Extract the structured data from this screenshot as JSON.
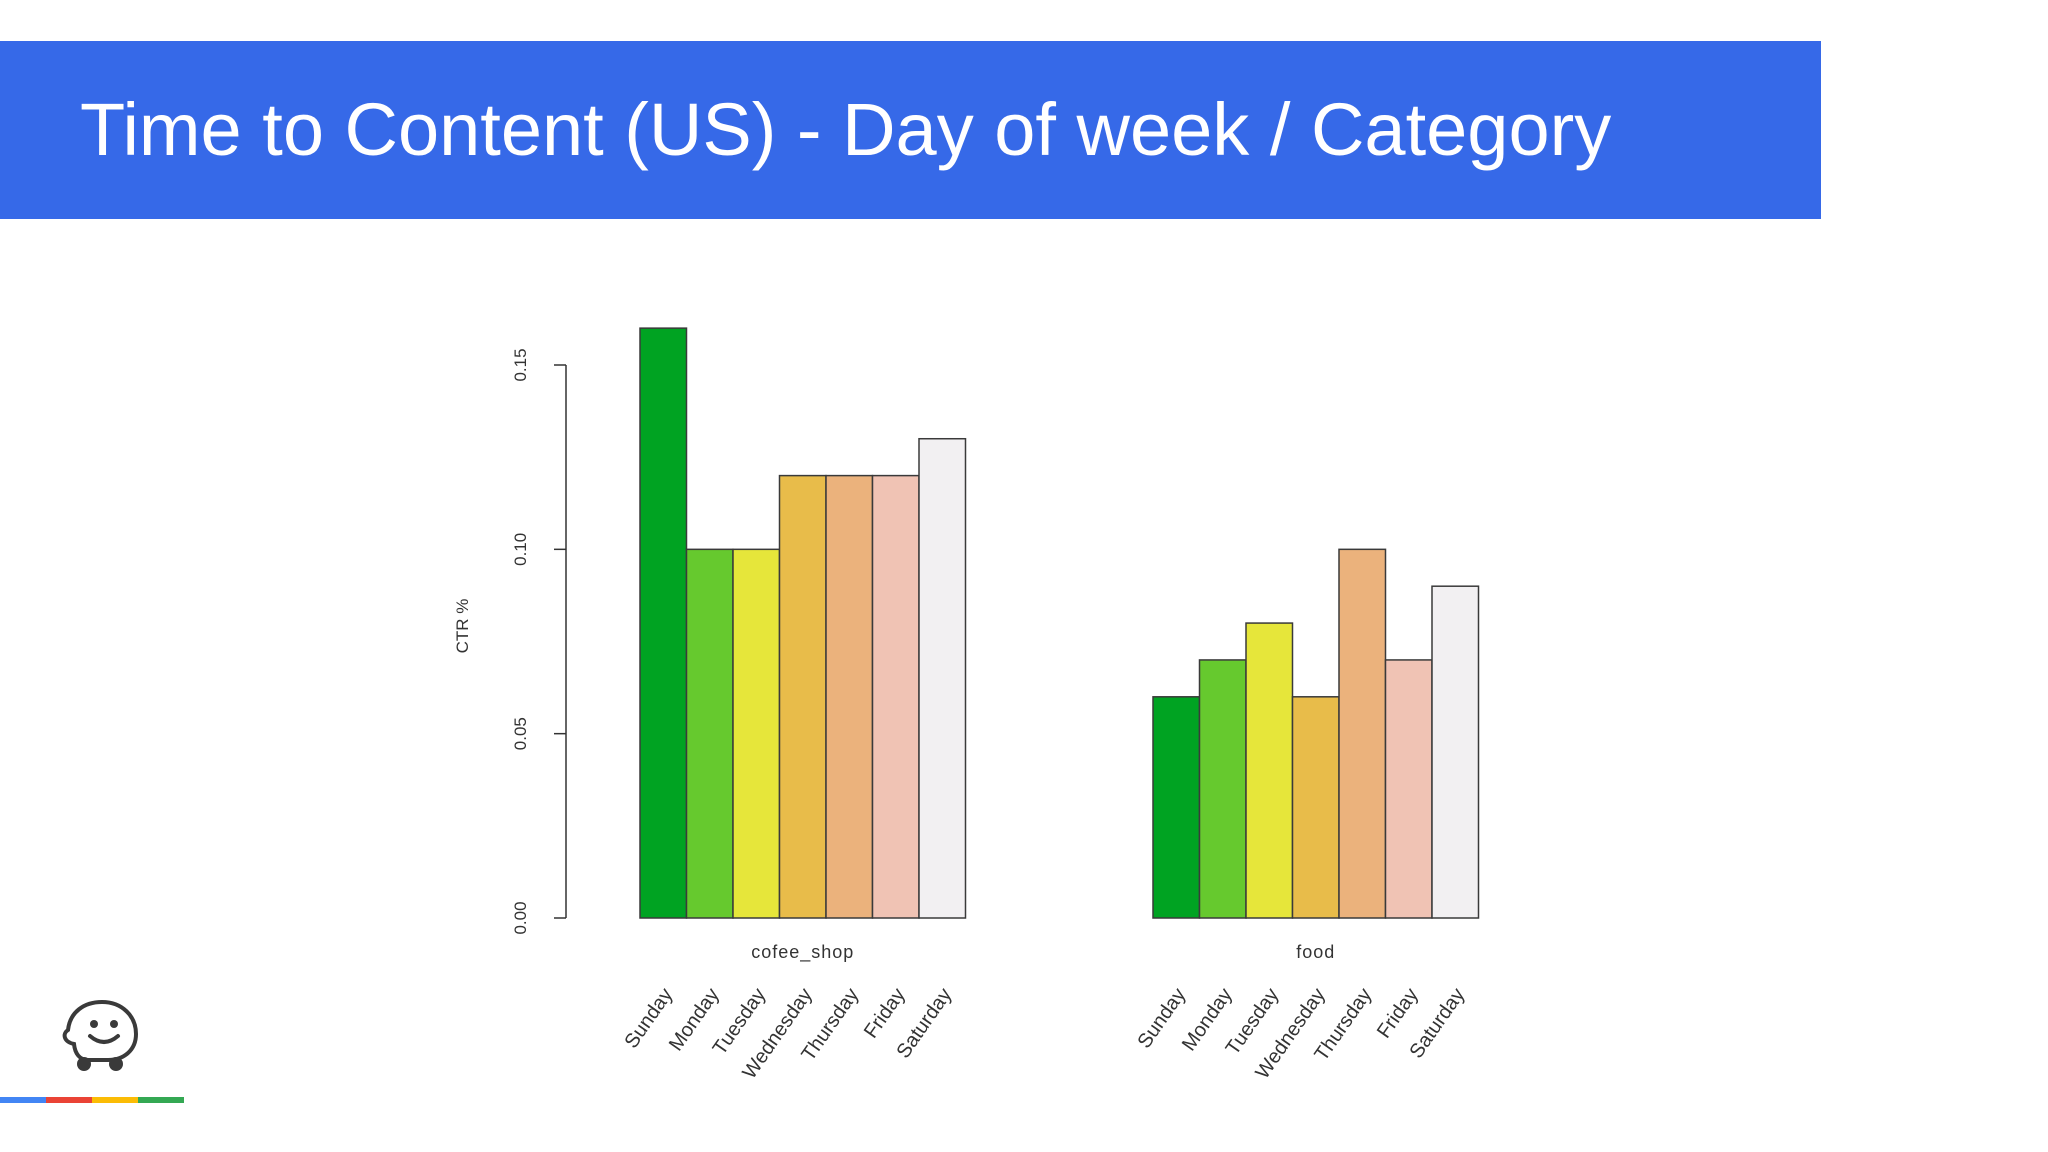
{
  "slide": {
    "title": "Time to Content (US) - Day of week / Category"
  },
  "brand": {
    "logo_icon": "waze-smiley-icon",
    "strip_colors": [
      "#4285f4",
      "#ea4335",
      "#fbbc05",
      "#34a853"
    ]
  },
  "chart_data": {
    "type": "bar",
    "title": "",
    "ylabel": "CTR %",
    "ylim": [
      0,
      0.16
    ],
    "yticks": [
      "0.00",
      "0.05",
      "0.10",
      "0.15"
    ],
    "ytick_values": [
      0,
      0.05,
      0.1,
      0.15
    ],
    "groups": [
      "cofee_shop",
      "food"
    ],
    "categories": [
      "Sunday",
      "Monday",
      "Tuesday",
      "Wednesday",
      "Thursday",
      "Friday",
      "Saturday"
    ],
    "colors": [
      "#00a322",
      "#66c92e",
      "#e6e63a",
      "#e8bc4a",
      "#ebb27c",
      "#f0c3b4",
      "#f2f0f2"
    ],
    "series": [
      {
        "group": "cofee_shop",
        "values": [
          0.16,
          0.1,
          0.1,
          0.12,
          0.12,
          0.12,
          0.13
        ]
      },
      {
        "group": "food",
        "values": [
          0.06,
          0.07,
          0.08,
          0.06,
          0.1,
          0.07,
          0.09
        ]
      }
    ],
    "grid": false,
    "legend": "none"
  }
}
